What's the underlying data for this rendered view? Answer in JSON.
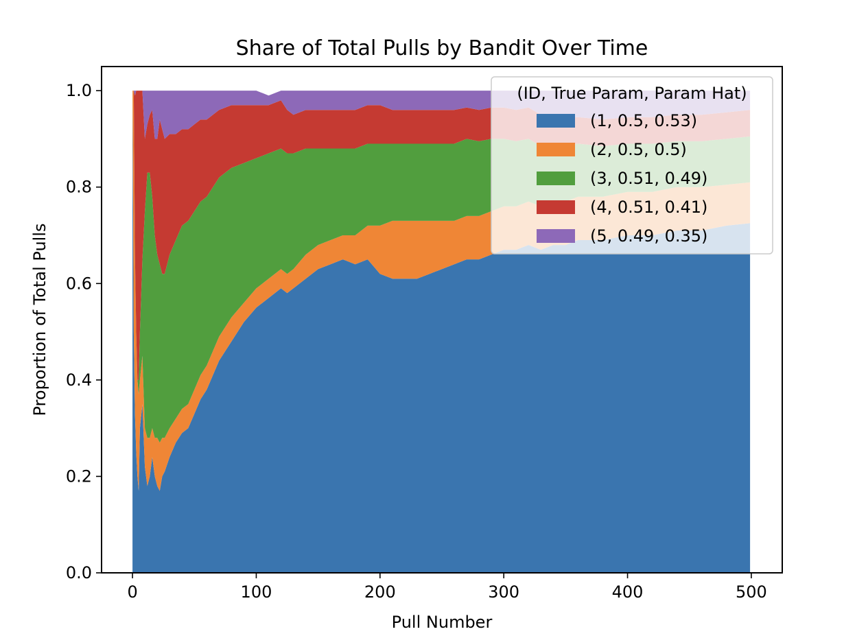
{
  "chart_data": {
    "type": "area",
    "title": "Share of Total Pulls by Bandit Over Time",
    "xlabel": "Pull Number",
    "ylabel": "Proportion of Total Pulls",
    "xlim": [
      -25,
      525
    ],
    "ylim": [
      0,
      1.05
    ],
    "xticks": [
      0,
      100,
      200,
      300,
      400,
      500
    ],
    "yticks": [
      0.0,
      0.2,
      0.4,
      0.6,
      0.8,
      1.0
    ],
    "xtick_labels": [
      "0",
      "100",
      "200",
      "300",
      "400",
      "500"
    ],
    "ytick_labels": [
      "0.0",
      "0.2",
      "0.4",
      "0.6",
      "0.8",
      "1.0"
    ],
    "grid": false,
    "legend": {
      "title": "(ID, True Param, Param Hat)",
      "placement": "top-right"
    },
    "x": [
      0,
      1,
      2,
      3,
      4,
      5,
      6,
      8,
      10,
      12,
      14,
      16,
      18,
      20,
      22,
      24,
      26,
      30,
      35,
      40,
      45,
      50,
      55,
      60,
      70,
      80,
      90,
      100,
      110,
      120,
      125,
      130,
      140,
      150,
      160,
      170,
      180,
      190,
      200,
      210,
      220,
      230,
      240,
      250,
      260,
      270,
      280,
      290,
      300,
      310,
      320,
      330,
      340,
      350,
      360,
      380,
      400,
      420,
      440,
      460,
      480,
      499
    ],
    "series": [
      {
        "name": "(1, 0.5, 0.53)",
        "color": "#3a75af",
        "values": [
          1.0,
          0.5,
          0.33,
          0.25,
          0.2,
          0.17,
          0.3,
          0.35,
          0.22,
          0.18,
          0.2,
          0.24,
          0.2,
          0.18,
          0.17,
          0.2,
          0.21,
          0.24,
          0.27,
          0.29,
          0.3,
          0.33,
          0.36,
          0.38,
          0.44,
          0.48,
          0.52,
          0.55,
          0.57,
          0.59,
          0.58,
          0.59,
          0.61,
          0.63,
          0.64,
          0.65,
          0.64,
          0.65,
          0.62,
          0.61,
          0.61,
          0.61,
          0.62,
          0.63,
          0.64,
          0.65,
          0.65,
          0.66,
          0.67,
          0.67,
          0.68,
          0.67,
          0.68,
          0.68,
          0.69,
          0.69,
          0.7,
          0.7,
          0.71,
          0.71,
          0.72,
          0.725
        ]
      },
      {
        "name": "(2, 0.5, 0.5)",
        "color": "#ef8636",
        "values": [
          0.0,
          0.5,
          0.33,
          0.25,
          0.2,
          0.2,
          0.1,
          0.1,
          0.08,
          0.1,
          0.08,
          0.06,
          0.08,
          0.1,
          0.1,
          0.08,
          0.07,
          0.06,
          0.05,
          0.05,
          0.05,
          0.05,
          0.05,
          0.05,
          0.05,
          0.05,
          0.04,
          0.04,
          0.04,
          0.04,
          0.04,
          0.04,
          0.05,
          0.05,
          0.05,
          0.05,
          0.06,
          0.07,
          0.1,
          0.12,
          0.12,
          0.12,
          0.11,
          0.1,
          0.09,
          0.09,
          0.09,
          0.09,
          0.09,
          0.09,
          0.09,
          0.09,
          0.09,
          0.09,
          0.09,
          0.09,
          0.09,
          0.09,
          0.09,
          0.09,
          0.085,
          0.085
        ]
      },
      {
        "name": "(3, 0.51, 0.49)",
        "color": "#519e3e",
        "values": [
          0.0,
          0.0,
          0.0,
          0.0,
          0.0,
          0.03,
          0.1,
          0.2,
          0.45,
          0.55,
          0.55,
          0.48,
          0.42,
          0.38,
          0.37,
          0.34,
          0.34,
          0.36,
          0.37,
          0.38,
          0.38,
          0.37,
          0.36,
          0.35,
          0.33,
          0.31,
          0.29,
          0.27,
          0.26,
          0.25,
          0.25,
          0.24,
          0.22,
          0.2,
          0.19,
          0.18,
          0.18,
          0.17,
          0.17,
          0.16,
          0.16,
          0.16,
          0.16,
          0.16,
          0.16,
          0.16,
          0.155,
          0.15,
          0.14,
          0.135,
          0.13,
          0.125,
          0.12,
          0.115,
          0.11,
          0.105,
          0.1,
          0.1,
          0.095,
          0.095,
          0.095,
          0.095
        ]
      },
      {
        "name": "(4, 0.51, 0.41)",
        "color": "#c53a32",
        "values": [
          0.0,
          0.0,
          0.33,
          0.5,
          0.6,
          0.6,
          0.5,
          0.35,
          0.15,
          0.1,
          0.12,
          0.18,
          0.2,
          0.24,
          0.3,
          0.3,
          0.28,
          0.25,
          0.22,
          0.2,
          0.19,
          0.18,
          0.17,
          0.16,
          0.14,
          0.13,
          0.12,
          0.11,
          0.1,
          0.1,
          0.09,
          0.08,
          0.08,
          0.08,
          0.08,
          0.08,
          0.08,
          0.08,
          0.08,
          0.07,
          0.07,
          0.07,
          0.07,
          0.07,
          0.07,
          0.065,
          0.065,
          0.065,
          0.065,
          0.065,
          0.065,
          0.065,
          0.06,
          0.06,
          0.055,
          0.055,
          0.055,
          0.055,
          0.055,
          0.055,
          0.055,
          0.055
        ]
      },
      {
        "name": "(5, 0.49, 0.35)",
        "color": "#8d69b8",
        "values": [
          0.0,
          0.0,
          0.01,
          0.0,
          0.0,
          0.0,
          0.0,
          0.0,
          0.1,
          0.07,
          0.05,
          0.04,
          0.1,
          0.1,
          0.06,
          0.08,
          0.1,
          0.09,
          0.09,
          0.08,
          0.08,
          0.07,
          0.06,
          0.06,
          0.04,
          0.03,
          0.03,
          0.03,
          0.02,
          0.02,
          0.04,
          0.05,
          0.04,
          0.04,
          0.04,
          0.04,
          0.04,
          0.03,
          0.03,
          0.04,
          0.04,
          0.04,
          0.04,
          0.04,
          0.04,
          0.035,
          0.04,
          0.035,
          0.035,
          0.04,
          0.035,
          0.05,
          0.05,
          0.055,
          0.055,
          0.06,
          0.055,
          0.055,
          0.05,
          0.05,
          0.045,
          0.04
        ]
      }
    ]
  }
}
